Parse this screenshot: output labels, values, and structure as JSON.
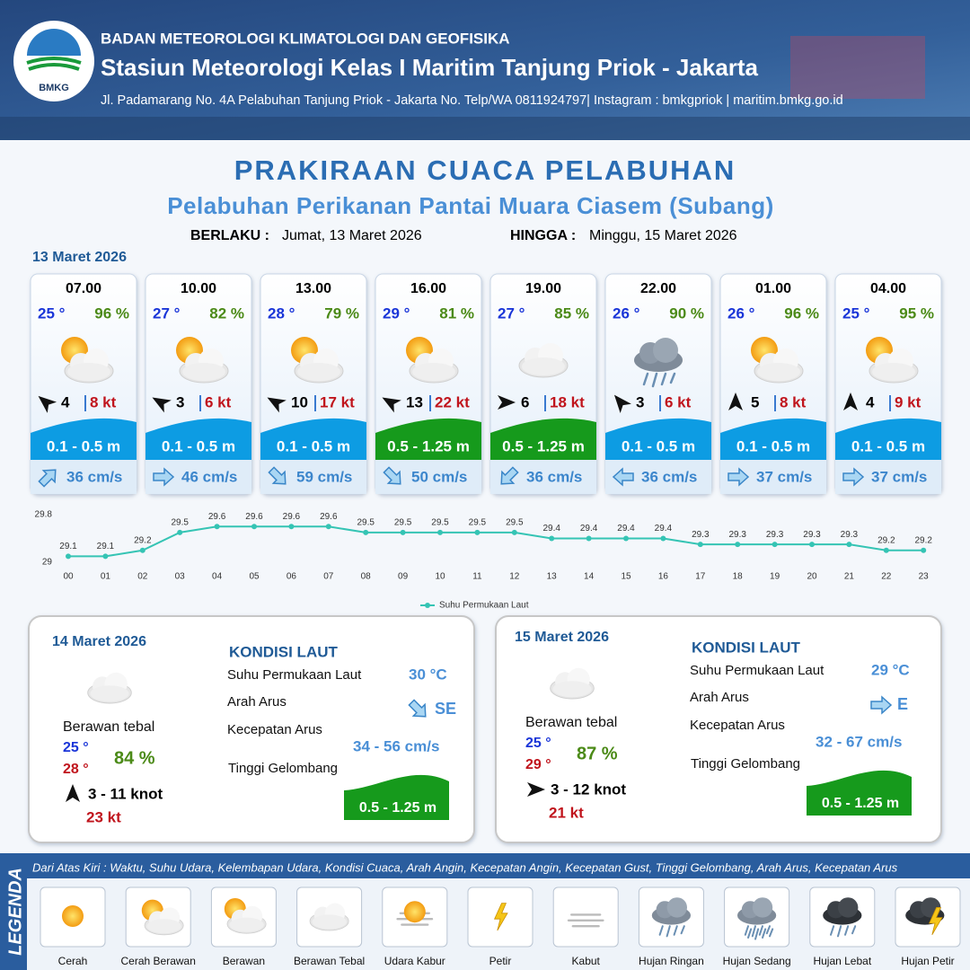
{
  "header": {
    "agency": "BADAN METEOROLOGI KLIMATOLOGI DAN GEOFISIKA",
    "station": "Stasiun Meteorologi Kelas I Maritim Tanjung Priok - Jakarta",
    "address": "Jl. Padamarang No. 4A Pelabuhan Tanjung Priok - Jakarta No. Telp/WA 0811924797| Instagram : bmkgpriok | maritim.bmkg.go.id",
    "logo_text": "BMKG"
  },
  "title": "PRAKIRAAN CUACA PELABUHAN",
  "subtitle": "Pelabuhan Perikanan Pantai Muara Ciasem (Subang)",
  "validity": {
    "from_label": "BERLAKU :",
    "from": "Jumat, 13 Maret 2026",
    "until_label": "HINGGA :",
    "until": "Minggu, 15 Maret 2026"
  },
  "day1": {
    "date": "13 Maret 2026",
    "forecasts": [
      {
        "time": "07.00",
        "temp": "25 °",
        "humidity": "96 %",
        "wind": 4,
        "gust": "8 kt",
        "wave": "0.1 - 0.5 m",
        "wave_color": "#0d9ce3",
        "current": "36 cm/s"
      },
      {
        "time": "10.00",
        "temp": "27 °",
        "humidity": "82 %",
        "wind": 3,
        "gust": "6 kt",
        "wave": "0.1 - 0.5 m",
        "wave_color": "#0d9ce3",
        "current": "46 cm/s"
      },
      {
        "time": "13.00",
        "temp": "28 °",
        "humidity": "79 %",
        "wind": 10,
        "gust": "17 kt",
        "wave": "0.1 - 0.5 m",
        "wave_color": "#0d9ce3",
        "current": "59 cm/s"
      },
      {
        "time": "16.00",
        "temp": "29 °",
        "humidity": "81 %",
        "wind": 13,
        "gust": "22 kt",
        "wave": "0.5 - 1.25 m",
        "wave_color": "#169a1c",
        "current": "50 cm/s"
      },
      {
        "time": "19.00",
        "temp": "27 °",
        "humidity": "85 %",
        "wind": 6,
        "gust": "18 kt",
        "wave": "0.5 - 1.25 m",
        "wave_color": "#169a1c",
        "current": "36 cm/s"
      },
      {
        "time": "22.00",
        "temp": "26 °",
        "humidity": "90 %",
        "wind": 3,
        "gust": "6 kt",
        "wave": "0.1 - 0.5 m",
        "wave_color": "#0d9ce3",
        "current": "36 cm/s"
      },
      {
        "time": "01.00",
        "temp": "26 °",
        "humidity": "96 %",
        "wind": 5,
        "gust": "8 kt",
        "wave": "0.1 - 0.5 m",
        "wave_color": "#0d9ce3",
        "current": "37 cm/s"
      },
      {
        "time": "04.00",
        "temp": "25 °",
        "humidity": "95 %",
        "wind": 4,
        "gust": "9 kt",
        "wave": "0.1 - 0.5 m",
        "wave_color": "#0d9ce3",
        "current": "37 cm/s"
      }
    ]
  },
  "chart_data": {
    "type": "line",
    "categories": [
      "00",
      "01",
      "02",
      "03",
      "04",
      "05",
      "06",
      "07",
      "08",
      "09",
      "10",
      "11",
      "12",
      "13",
      "14",
      "15",
      "16",
      "17",
      "18",
      "19",
      "20",
      "21",
      "22",
      "23"
    ],
    "series": [
      {
        "name": "Suhu Permukaan Laut",
        "color": "#35c4b4",
        "values": [
          29.1,
          29.1,
          29.2,
          29.5,
          29.6,
          29.6,
          29.6,
          29.6,
          29.5,
          29.5,
          29.5,
          29.5,
          29.5,
          29.4,
          29.4,
          29.4,
          29.4,
          29.3,
          29.3,
          29.3,
          29.3,
          29.3,
          29.2,
          29.2
        ]
      }
    ],
    "ylim": [
      29,
      29.8
    ],
    "yticks": [
      29,
      29.8
    ]
  },
  "daily": [
    {
      "date": "14 Maret 2026",
      "section_title": "KONDISI LAUT",
      "sst_label": "Suhu Permukaan Laut",
      "sst": "30 °C",
      "current_dir_label": "Arah Arus",
      "current_dir": "SE",
      "current_speed_label": "Kecepatan Arus",
      "current_speed": "34 - 56 cm/s",
      "wave_label": "Tinggi Gelombang",
      "wave": "0.5 - 1.25 m",
      "condition": "Berawan tebal",
      "temp_min": "25 °",
      "temp_max": "28 °",
      "humidity": "84 %",
      "wind": "3 - 11 knot",
      "gust": "23 kt"
    },
    {
      "date": "15 Maret 2026",
      "section_title": "KONDISI LAUT",
      "sst_label": "Suhu Permukaan Laut",
      "sst": "29 °C",
      "current_dir_label": "Arah Arus",
      "current_dir": "E",
      "current_speed_label": "Kecepatan Arus",
      "current_speed": "32 - 67 cm/s",
      "wave_label": "Tinggi Gelombang",
      "wave": "0.5 - 1.25 m",
      "condition": "Berawan tebal",
      "temp_min": "25 °",
      "temp_max": "29 °",
      "humidity": "87 %",
      "wind": "3 - 12 knot",
      "gust": "21 kt"
    }
  ],
  "legend": {
    "title": "LEGENDA",
    "description": "Dari Atas Kiri : Waktu, Suhu Udara, Kelembapan Udara, Kondisi Cuaca, Arah Angin, Kecepatan Angin, Kecepatan Gust, Tinggi Gelombang, Arah Arus, Kecepatan Arus",
    "items": [
      "Cerah",
      "Cerah Berawan",
      "Berawan",
      "Berawan Tebal",
      "Udara Kabur",
      "Petir",
      "Kabut",
      "Hujan Ringan",
      "Hujan Sedang",
      "Hujan Lebat",
      "Hujan Petir"
    ]
  }
}
